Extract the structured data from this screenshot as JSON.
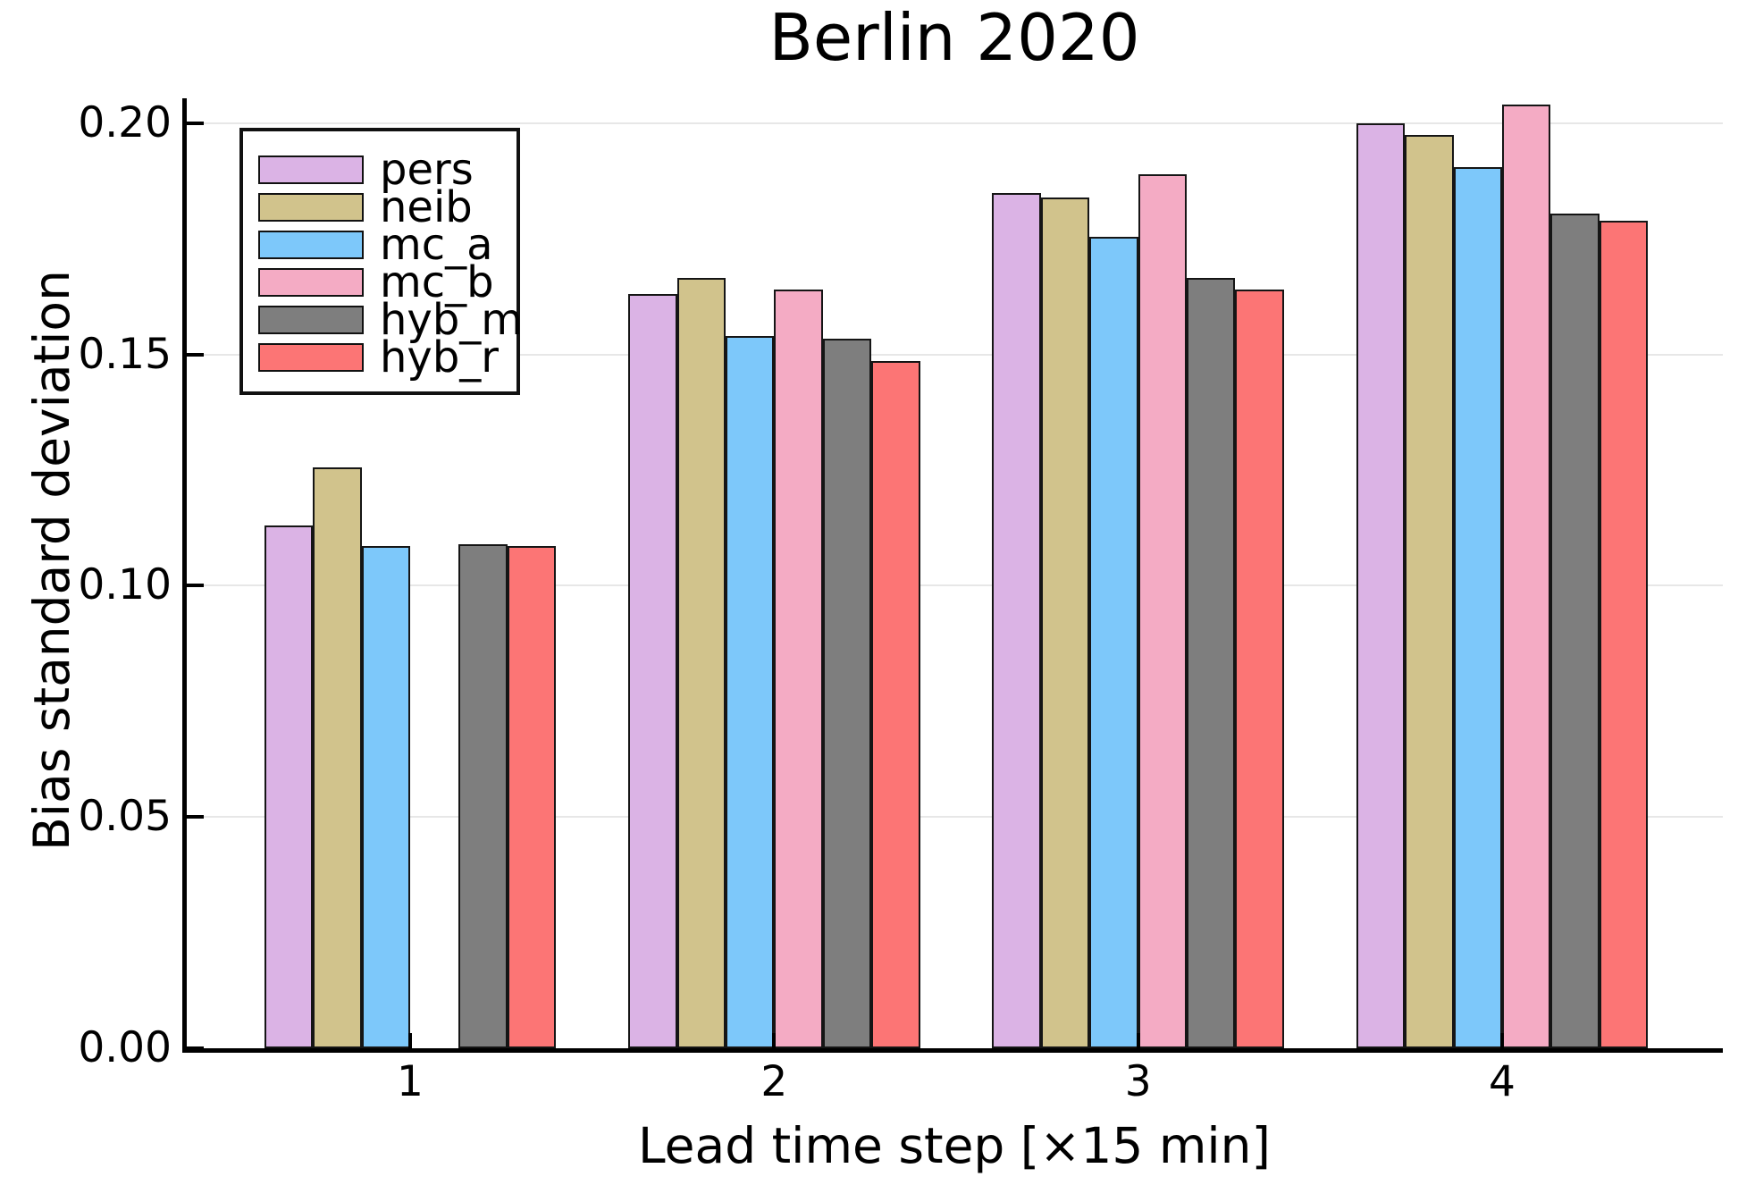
{
  "chart_data": {
    "type": "bar",
    "title": "Berlin 2020",
    "xlabel": "Lead time step [×15 min]",
    "ylabel": "Bias standard deviation",
    "categories": [
      "1",
      "2",
      "3",
      "4"
    ],
    "ylim": [
      0,
      0.205
    ],
    "yticks": [
      {
        "label": "0.00",
        "value": 0.0
      },
      {
        "label": "0.05",
        "value": 0.05
      },
      {
        "label": "0.10",
        "value": 0.1
      },
      {
        "label": "0.15",
        "value": 0.15
      },
      {
        "label": "0.20",
        "value": 0.2
      }
    ],
    "grid": "horizontal-light",
    "legend_position": "top-left",
    "bar_edge_color": "#151515",
    "series": [
      {
        "name": "pers",
        "color": "#dbb3e5",
        "values": [
          0.113,
          0.163,
          0.185,
          0.2
        ]
      },
      {
        "name": "neib",
        "color": "#d1c38c",
        "values": [
          0.1255,
          0.1665,
          0.184,
          0.1975
        ]
      },
      {
        "name": "mc_a",
        "color": "#7dc8fa",
        "values": [
          0.1085,
          0.154,
          0.1755,
          0.1905
        ]
      },
      {
        "name": "mc_b",
        "color": "#f4abc4",
        "values": [
          null,
          0.164,
          0.189,
          0.204
        ]
      },
      {
        "name": "hyb_m",
        "color": "#7e7e7e",
        "values": [
          0.109,
          0.1535,
          0.1665,
          0.1805
        ]
      },
      {
        "name": "hyb_r",
        "color": "#fc7575",
        "values": [
          0.1085,
          0.1485,
          0.164,
          0.179
        ]
      }
    ]
  }
}
